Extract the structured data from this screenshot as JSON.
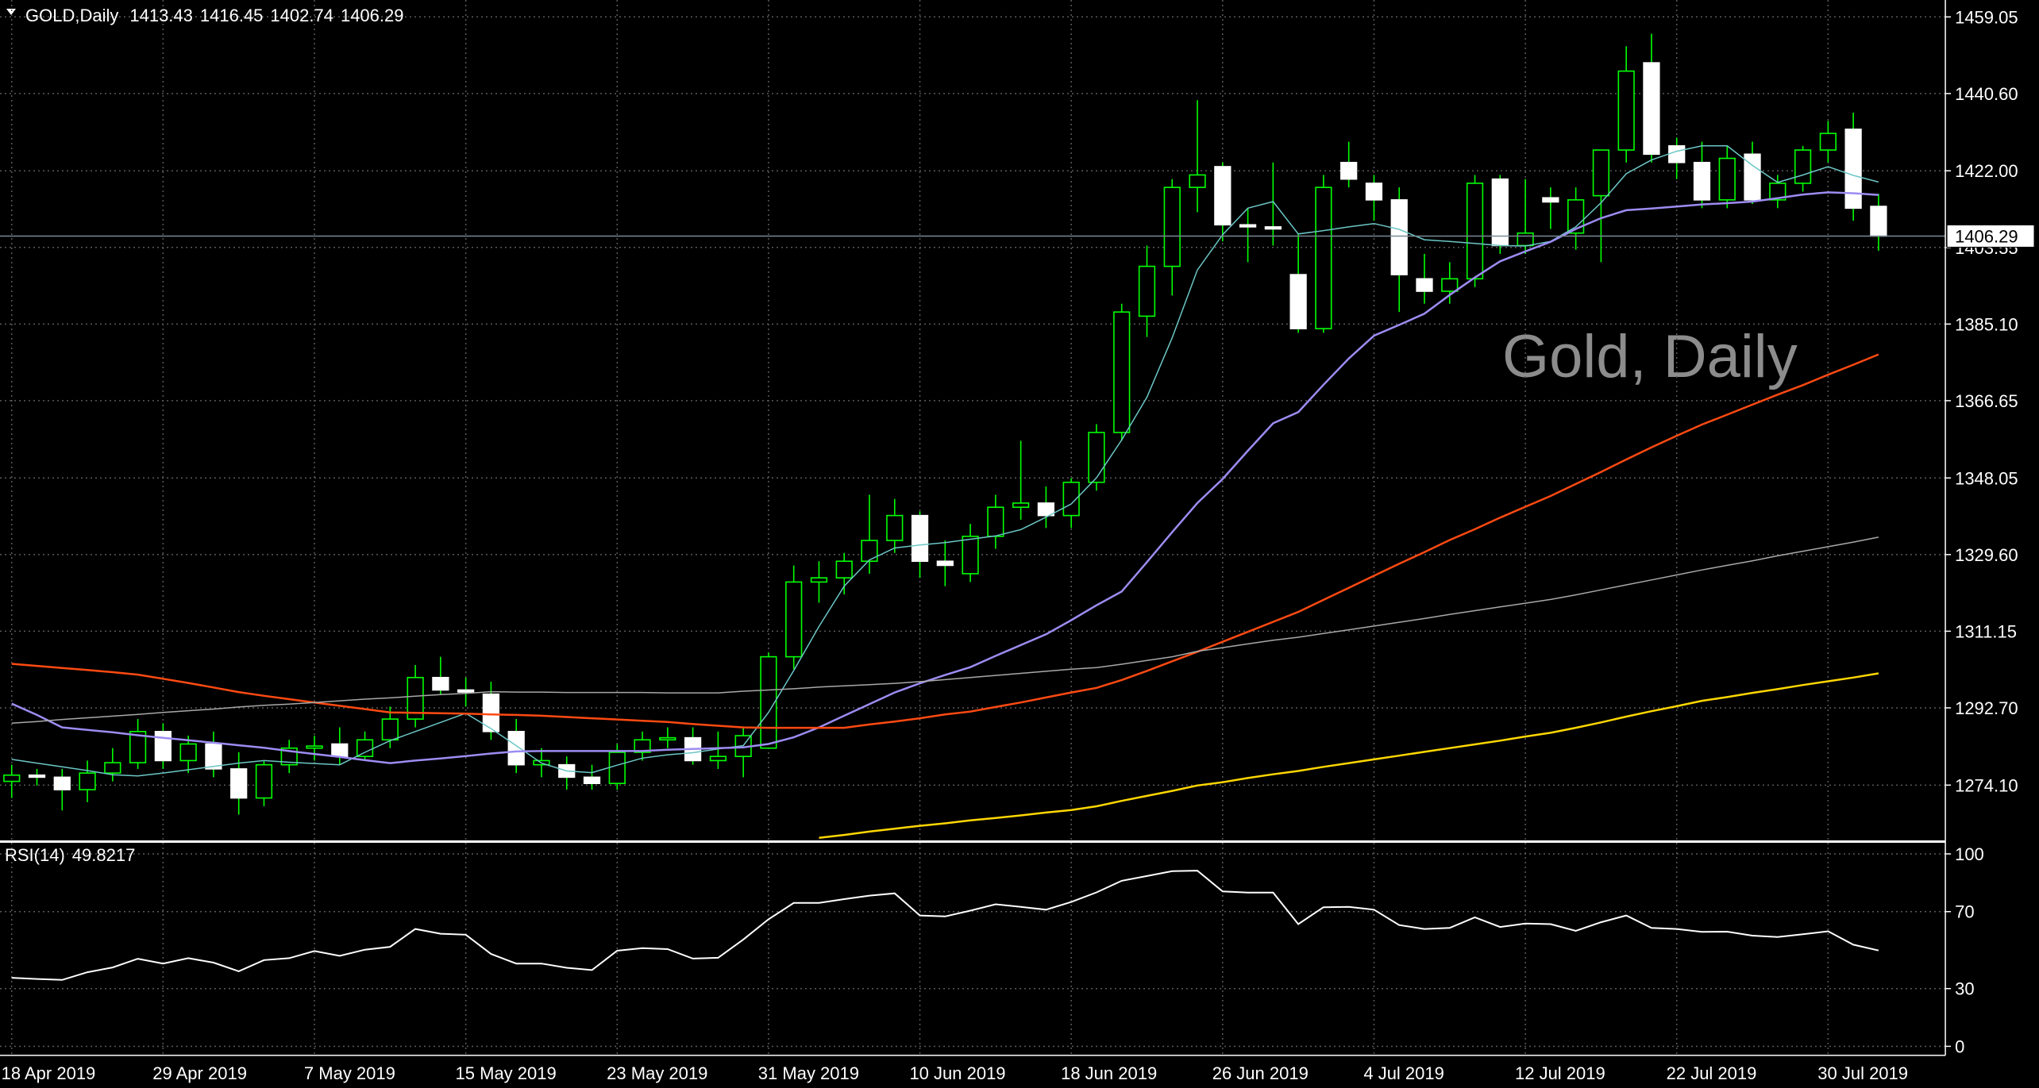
{
  "chart_data": [
    {
      "type": "candlestick",
      "title": "GOLD,Daily",
      "watermark": "Gold, Daily",
      "categories": [
        "18 Apr 2019",
        null,
        null,
        null,
        null,
        null,
        "29 Apr 2019",
        null,
        null,
        null,
        null,
        null,
        "7 May 2019",
        null,
        null,
        null,
        null,
        null,
        "15 May 2019",
        null,
        null,
        null,
        null,
        null,
        "23 May 2019",
        null,
        null,
        null,
        null,
        null,
        "31 May 2019",
        null,
        null,
        null,
        null,
        null,
        "10 Jun 2019",
        null,
        null,
        null,
        null,
        null,
        "18 Jun 2019",
        null,
        null,
        null,
        null,
        null,
        "26 Jun 2019",
        null,
        null,
        null,
        null,
        null,
        "4 Jul 2019",
        null,
        null,
        null,
        null,
        null,
        "12 Jul 2019",
        null,
        null,
        null,
        null,
        null,
        "22 Jul 2019",
        null,
        null,
        null,
        null,
        null,
        "30 Jul 2019",
        null,
        null
      ],
      "open": [
        1275,
        1276.5,
        1276,
        1273,
        1277,
        1279.5,
        1287,
        1280,
        1284,
        1278,
        1271,
        1279,
        1283,
        1284,
        1281,
        1285,
        1290,
        1300,
        1297,
        1296,
        1287,
        1279,
        1279,
        1276,
        1274.5,
        1282,
        1285,
        1285.5,
        1280,
        1281,
        1283,
        1305,
        1323,
        1324,
        1328,
        1333,
        1339,
        1328,
        1325,
        1334,
        1341,
        1342,
        1339,
        1347,
        1359,
        1387,
        1399,
        1418,
        1423,
        1409,
        1408.5,
        1397,
        1384,
        1424,
        1419,
        1415,
        1396,
        1393,
        1396,
        1420,
        1404,
        1415.5,
        1407,
        1416,
        1427,
        1448,
        1428,
        1424,
        1415,
        1426,
        1415,
        1419,
        1427,
        1432,
        1413.43
      ],
      "high": [
        1279,
        1278,
        1278,
        1280,
        1283,
        1290,
        1289,
        1286,
        1287,
        1282,
        1280,
        1285,
        1286,
        1288,
        1287,
        1293,
        1303,
        1305,
        1300,
        1299,
        1290,
        1283,
        1281,
        1279,
        1284,
        1287,
        1288,
        1288,
        1287,
        1288,
        1306,
        1327,
        1328,
        1330,
        1344,
        1343,
        1340,
        1333,
        1337,
        1344,
        1357,
        1346,
        1348,
        1361,
        1390,
        1404,
        1420,
        1439,
        1424,
        1413,
        1424,
        1407,
        1421,
        1429,
        1421,
        1418,
        1402,
        1400,
        1421,
        1421,
        1420,
        1418,
        1418,
        1427,
        1452,
        1455,
        1430,
        1429,
        1428,
        1429,
        1421,
        1428,
        1434,
        1436,
        1416.45
      ],
      "low": [
        1271,
        1274,
        1268,
        1270,
        1275,
        1278,
        1278,
        1277,
        1276,
        1267,
        1269,
        1277,
        1280,
        1279,
        1280,
        1283,
        1288,
        1296,
        1293,
        1285,
        1277,
        1276,
        1273,
        1273,
        1273,
        1280,
        1283,
        1279,
        1278,
        1276,
        1284,
        1302,
        1318,
        1320,
        1325,
        1330,
        1324,
        1322,
        1323,
        1331,
        1338,
        1336,
        1336,
        1345,
        1357,
        1382,
        1392,
        1412,
        1405,
        1400,
        1404,
        1383,
        1383,
        1418,
        1410,
        1388,
        1390,
        1390,
        1394,
        1402,
        1402,
        1408,
        1403,
        1400,
        1424,
        1424,
        1420,
        1413,
        1413,
        1414,
        1413,
        1417,
        1424,
        1410,
        1402.74
      ],
      "close": [
        1276.5,
        1276,
        1273,
        1277,
        1279.5,
        1287,
        1280,
        1284,
        1278,
        1271,
        1279,
        1283,
        1283.5,
        1281,
        1285,
        1290,
        1300,
        1297,
        1296.5,
        1287,
        1279,
        1280,
        1276,
        1274.5,
        1282,
        1285,
        1285.5,
        1280,
        1281,
        1286,
        1305,
        1323,
        1324,
        1328,
        1333,
        1339,
        1328,
        1327,
        1334,
        1341,
        1342,
        1339,
        1347,
        1359,
        1388,
        1399,
        1418,
        1421,
        1409,
        1408.5,
        1408,
        1384,
        1418,
        1420,
        1415,
        1397,
        1393,
        1396,
        1419,
        1404,
        1407,
        1414.5,
        1415,
        1427,
        1446,
        1426,
        1424,
        1415,
        1425,
        1415,
        1419,
        1427,
        1431,
        1413,
        1406.29
      ],
      "up_color": "#000000",
      "down_color": "#ffffff",
      "wick_color": "#00ff00",
      "series": [
        {
          "color": "#6cc6c6",
          "values": [
            1280.3,
            1279.4,
            1278.5,
            1277.6,
            1276.6,
            1276.3,
            1277.0,
            1277.8,
            1278.6,
            1279.4,
            1280.0,
            1279.6,
            1279.3,
            1279.0,
            1282.0,
            1284.8,
            1287.0,
            1289.2,
            1291.4,
            1287.7,
            1283.6,
            1279.4,
            1277.5,
            1277.1,
            1278.9,
            1280.6,
            1281.4,
            1281.9,
            1282.8,
            1283.6,
            1291.6,
            1301.7,
            1312.3,
            1322.0,
            1328.3,
            1331.2,
            1331.9,
            1332.5,
            1333.3,
            1334.1,
            1335.6,
            1338.6,
            1341.8,
            1348.1,
            1357.2,
            1367.5,
            1381.8,
            1398.1,
            1406.6,
            1413.0,
            1414.6,
            1406.8,
            1407.6,
            1408.5,
            1409.3,
            1407.9,
            1405.4,
            1405.0,
            1404.5,
            1404.0,
            1403.9,
            1405.0,
            1408.5,
            1414.3,
            1421.3,
            1424.6,
            1426.7,
            1428.0,
            1428.0,
            1423.3,
            1419.2,
            1421.0,
            1423.0,
            1420.9,
            1419.3
          ]
        },
        {
          "color": "#9d8cf2",
          "values": [
            1293.7,
            1291.0,
            1288.0,
            1287.4,
            1286.8,
            1286.1,
            1285.5,
            1284.9,
            1284.3,
            1283.7,
            1283.1,
            1282.3,
            1281.6,
            1280.9,
            1280.1,
            1279.4,
            1280.0,
            1280.5,
            1281.1,
            1281.7,
            1282.2,
            1282.3,
            1282.3,
            1282.3,
            1282.3,
            1282.3,
            1282.6,
            1282.8,
            1283.0,
            1283.2,
            1284.0,
            1285.6,
            1288.0,
            1290.8,
            1293.6,
            1296.4,
            1298.6,
            1300.6,
            1302.5,
            1305.2,
            1307.8,
            1310.4,
            1313.8,
            1317.4,
            1320.7,
            1327.8,
            1335.0,
            1342.0,
            1347.8,
            1354.6,
            1361.2,
            1363.9,
            1370.5,
            1376.8,
            1382.3,
            1384.9,
            1387.6,
            1392.1,
            1396.3,
            1400.2,
            1402.6,
            1404.9,
            1408.0,
            1410.6,
            1412.5,
            1412.9,
            1413.4,
            1413.9,
            1414.2,
            1414.6,
            1415.4,
            1416.3,
            1416.8,
            1416.6,
            1416.2
          ]
        },
        {
          "color": "#ff4a12",
          "values": [
            1303.3,
            1302.8,
            1302.3,
            1301.8,
            1301.3,
            1300.7,
            1299.7,
            1298.7,
            1297.6,
            1296.5,
            1295.6,
            1294.8,
            1294.0,
            1293.2,
            1292.4,
            1291.6,
            1291.5,
            1291.4,
            1291.3,
            1291.1,
            1291.0,
            1290.8,
            1290.5,
            1290.2,
            1289.9,
            1289.6,
            1289.3,
            1288.8,
            1288.4,
            1288.0,
            1287.9,
            1287.9,
            1287.9,
            1287.9,
            1288.7,
            1289.4,
            1290.2,
            1291.1,
            1291.8,
            1292.9,
            1294.0,
            1295.2,
            1296.4,
            1297.5,
            1299.4,
            1301.6,
            1303.9,
            1306.2,
            1308.6,
            1311.0,
            1313.4,
            1315.8,
            1318.7,
            1321.6,
            1324.5,
            1327.4,
            1330.2,
            1333.1,
            1335.7,
            1338.5,
            1341.1,
            1343.7,
            1346.6,
            1349.5,
            1352.5,
            1355.4,
            1358.2,
            1360.9,
            1363.3,
            1365.7,
            1368.1,
            1370.4,
            1372.9,
            1375.3,
            1377.8
          ]
        },
        {
          "color": "#a8a8a8",
          "values": [
            1289.0,
            1289.4,
            1289.9,
            1290.3,
            1290.7,
            1291.1,
            1291.6,
            1292.0,
            1292.4,
            1292.9,
            1293.3,
            1293.6,
            1294.0,
            1294.4,
            1294.8,
            1295.1,
            1295.5,
            1295.9,
            1296.2,
            1296.6,
            1296.5,
            1296.5,
            1296.4,
            1296.4,
            1296.4,
            1296.4,
            1296.3,
            1296.3,
            1296.3,
            1296.7,
            1297.0,
            1297.3,
            1297.7,
            1298.0,
            1298.3,
            1298.6,
            1299.0,
            1299.5,
            1300.0,
            1300.5,
            1301.0,
            1301.5,
            1302.0,
            1302.4,
            1303.2,
            1304.1,
            1305.0,
            1306.3,
            1307.2,
            1308.1,
            1309.0,
            1309.7,
            1310.6,
            1311.5,
            1312.4,
            1313.3,
            1314.2,
            1315.2,
            1316.1,
            1317.0,
            1317.9,
            1318.8,
            1319.9,
            1321.1,
            1322.3,
            1323.5,
            1324.7,
            1325.9,
            1327.0,
            1328.1,
            1329.3,
            1330.4,
            1331.5,
            1332.6,
            1333.8
          ]
        },
        {
          "color": "#ffd700",
          "values": [
            null,
            null,
            null,
            null,
            null,
            null,
            null,
            null,
            null,
            null,
            null,
            null,
            null,
            null,
            null,
            null,
            null,
            null,
            null,
            null,
            null,
            null,
            null,
            null,
            null,
            null,
            null,
            null,
            null,
            null,
            null,
            null,
            1261.4,
            1262.1,
            1262.9,
            1263.6,
            1264.3,
            1264.9,
            1265.6,
            1266.2,
            1266.8,
            1267.5,
            1268.1,
            1269.0,
            1270.3,
            1271.5,
            1272.7,
            1274.0,
            1274.8,
            1275.8,
            1276.7,
            1277.5,
            1278.5,
            1279.4,
            1280.3,
            1281.2,
            1282.1,
            1283.0,
            1283.9,
            1284.8,
            1285.8,
            1286.7,
            1287.9,
            1289.2,
            1290.6,
            1291.9,
            1293.1,
            1294.4,
            1295.3,
            1296.3,
            1297.2,
            1298.2,
            1299.1,
            1300.0,
            1301.0
          ]
        }
      ],
      "ylim": [
        1260.98,
        1463.12
      ],
      "yticks": [
        {
          "value": 1274.1,
          "label": "1274.10"
        },
        {
          "value": 1292.7,
          "label": "1292.70"
        },
        1311.15,
        {
          "value": 1329.6,
          "label": "1329.60"
        },
        1348.05,
        1366.65,
        {
          "value": 1385.1,
          "label": "1385.10"
        },
        1403.55,
        {
          "value": 1422,
          "label": "1422.00"
        },
        {
          "value": 1440.6,
          "label": "1440.60"
        },
        1459.05
      ],
      "grid": true
    },
    {
      "type": "line",
      "title": "RSI(14)",
      "color": "#ffffff",
      "values": [
        35.6,
        35.0,
        34.5,
        38.5,
        41.0,
        45.5,
        43.0,
        45.8,
        43.5,
        39.0,
        44.8,
        45.8,
        49.5,
        47.0,
        50.2,
        51.7,
        61.0,
        58.5,
        58.0,
        48.0,
        43.0,
        43.0,
        40.8,
        39.6,
        49.7,
        51.0,
        50.5,
        45.6,
        46.0,
        55.5,
        66.0,
        74.5,
        74.5,
        76.5,
        78.3,
        79.5,
        68.0,
        67.5,
        70.5,
        73.8,
        72.5,
        71.0,
        75.0,
        80.0,
        86.0,
        88.5,
        91.0,
        91.3,
        80.5,
        79.9,
        79.9,
        63.5,
        72.3,
        72.5,
        71.0,
        63.0,
        61.0,
        61.5,
        67.0,
        62.0,
        63.8,
        63.5,
        60.0,
        64.5,
        68.0,
        61.5,
        61.0,
        59.5,
        59.6,
        57.5,
        56.8,
        58.2,
        59.8,
        52.8,
        49.8217
      ],
      "ylim": [
        -4.7,
        105.4
      ],
      "yticks": [
        0,
        30,
        70,
        100
      ],
      "grid": true
    }
  ]
}
